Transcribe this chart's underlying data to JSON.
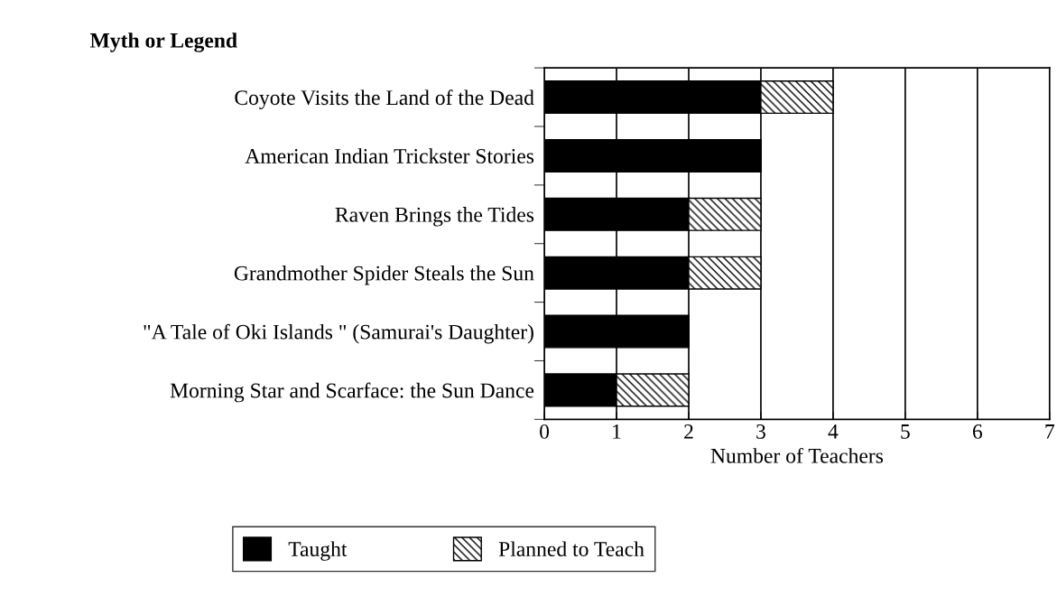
{
  "chart_data": {
    "type": "bar",
    "orientation": "horizontal",
    "stacked": true,
    "title": "Myth or Legend",
    "xlabel": "Number of Teachers",
    "categories": [
      "Coyote Visits the Land of the Dead",
      "American Indian Trickster Stories",
      "Raven Brings the Tides",
      "Grandmother Spider Steals the Sun",
      "\"A Tale of Oki Islands \" (Samurai's Daughter)",
      "Morning Star and Scarface: the Sun Dance"
    ],
    "series": [
      {
        "name": "Taught",
        "color": "#000000",
        "values": [
          3,
          3,
          2,
          2,
          2,
          1
        ]
      },
      {
        "name": "Planned to Teach",
        "color": "#000000",
        "values": [
          1,
          0,
          1,
          1,
          0,
          1
        ]
      }
    ],
    "xlim": [
      0,
      7
    ],
    "xticks": [
      0,
      1,
      2,
      3,
      4,
      5,
      6,
      7
    ],
    "grid": "x",
    "legend": "bottom"
  }
}
